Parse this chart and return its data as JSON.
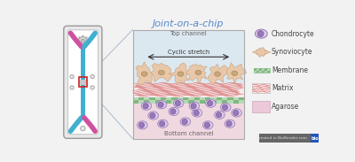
{
  "title": "Joint-on-a-chip",
  "title_color": "#5588cc",
  "title_fontsize": 8,
  "bg_color": "#f2f2f2",
  "cross_section_bg_top": "#dce8f0",
  "cross_section_bg_bot": "#f0d8e0",
  "top_channel_label": "Top channel",
  "bottom_channel_label": "Bottom channel",
  "cyclic_stretch_label": "Cyclic stretch",
  "membrane_color_light": "#b8d8b8",
  "membrane_color_dark": "#80b880",
  "agarose_color": "#ecc8d8",
  "matrix_color": "#e08080",
  "synoviocyte_color_light": "#e8c8a8",
  "synoviocyte_color_dark": "#c8a080",
  "chondrocyte_fill": "#d8cce8",
  "chondrocyte_border": "#9878b8",
  "chondrocyte_nucleus": "#7858a0",
  "chip_outline": "#999999",
  "chip_fill": "#f8f8f8",
  "chip_inner": "#ffffff",
  "blue_channel": "#40b0d0",
  "pink_channel": "#d050a0",
  "red_highlight": "#cc2222",
  "label_fontsize": 5,
  "legend_fontsize": 5.5,
  "connector_color": "#aabbcc",
  "biorender_bg": "#666666",
  "biorender_blue": "#2255bb"
}
